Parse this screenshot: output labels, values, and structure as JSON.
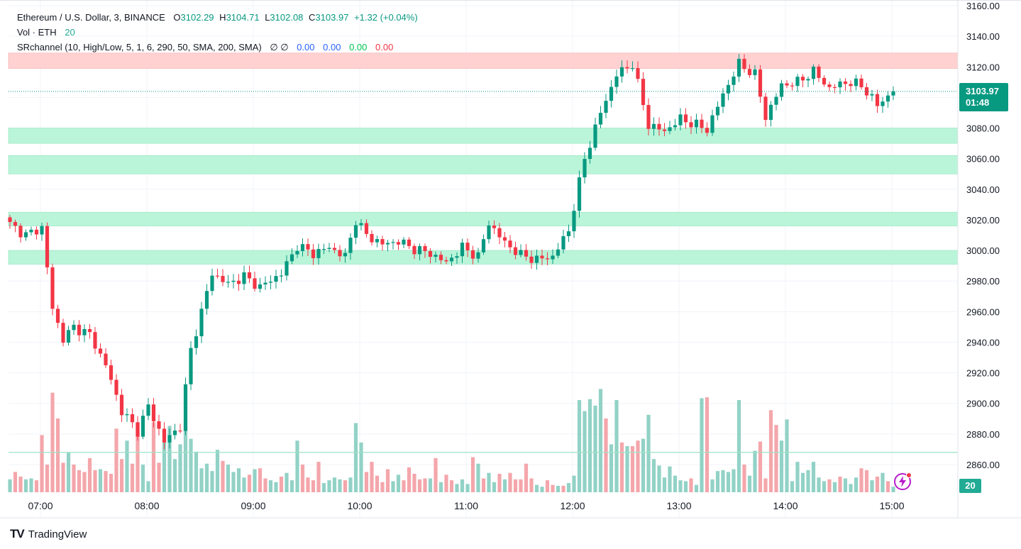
{
  "legend": {
    "symbol": "Ethereum / U.S. Dollar, 3, BINANCE",
    "o_label": "O",
    "o_value": "3102.29",
    "h_label": "H",
    "h_value": "3104.71",
    "l_label": "L",
    "l_value": "3102.08",
    "c_label": "C",
    "c_value": "3103.97",
    "change": "+1.32 (+0.04%)",
    "vol_label": "Vol · ETH",
    "vol_value": "20",
    "sr_label": "SRchannel (10, High/Low, 5, 1, 6, 290, 50, SMA, 200, SMA)",
    "sr_icons": "∅ ∅",
    "sr_v1": "0.00",
    "sr_v2": "0.00",
    "sr_v3": "0.00",
    "sr_v4": "0.00"
  },
  "price_badge": {
    "price": "3103.97",
    "countdown": "01:48"
  },
  "volume_badge": "20",
  "brand": {
    "logo": "TV",
    "name": "TradingView"
  },
  "colors": {
    "up": "#089981",
    "down": "#f23645",
    "up_volume": "#92d2c6",
    "down_volume": "#f4a6ab",
    "support_zone": "#baf5d9",
    "resistance_zone": "#ffd1d1",
    "grid": "#f0f3fa"
  },
  "chart_data": {
    "type": "candlestick",
    "symbol": "ETHUSD",
    "interval_minutes": 3,
    "y_axis": {
      "min": 2860,
      "max": 3160,
      "ticks": [
        2860,
        2880,
        2900,
        2920,
        2940,
        2960,
        2980,
        3000,
        3020,
        3040,
        3060,
        3080,
        3100,
        3120,
        3140,
        3160
      ],
      "side": "right"
    },
    "x_axis": {
      "labels": [
        "07:00",
        "08:00",
        "09:00",
        "10:00",
        "11:00",
        "12:00",
        "13:00",
        "14:00",
        "15:00"
      ]
    },
    "last_price": 3103.97,
    "sr_zones": [
      {
        "kind": "resistance",
        "low": 3119,
        "high": 3129
      },
      {
        "kind": "support",
        "low": 3070,
        "high": 3080
      },
      {
        "kind": "support",
        "low": 3050,
        "high": 3062
      },
      {
        "kind": "support",
        "low": 3016,
        "high": 3025
      },
      {
        "kind": "support",
        "low": 2991,
        "high": 3000
      }
    ],
    "volume_ma_level": 2868,
    "anchors": [
      [
        0,
        3017
      ],
      [
        3,
        3010
      ],
      [
        6,
        3015
      ],
      [
        8,
        2962
      ],
      [
        10,
        2942
      ],
      [
        12,
        2950
      ],
      [
        15,
        2945
      ],
      [
        18,
        2925
      ],
      [
        21,
        2895
      ],
      [
        24,
        2882
      ],
      [
        26,
        2898
      ],
      [
        29,
        2875
      ],
      [
        32,
        2885
      ],
      [
        34,
        2935
      ],
      [
        38,
        2985
      ],
      [
        41,
        2978
      ],
      [
        44,
        2983
      ],
      [
        47,
        2976
      ],
      [
        51,
        2985
      ],
      [
        54,
        3003
      ],
      [
        57,
        2998
      ],
      [
        60,
        3002
      ],
      [
        63,
        2996
      ],
      [
        65,
        3020
      ],
      [
        67,
        3010
      ],
      [
        70,
        3004
      ],
      [
        73,
        3006
      ],
      [
        76,
        3001
      ],
      [
        79,
        2998
      ],
      [
        82,
        2992
      ],
      [
        85,
        3002
      ],
      [
        88,
        2996
      ],
      [
        90,
        3018
      ],
      [
        93,
        3005
      ],
      [
        96,
        2997
      ],
      [
        99,
        2994
      ],
      [
        102,
        2996
      ],
      [
        105,
        3013
      ],
      [
        108,
        3060
      ],
      [
        111,
        3090
      ],
      [
        114,
        3115
      ],
      [
        117,
        3122
      ],
      [
        120,
        3082
      ],
      [
        123,
        3078
      ],
      [
        126,
        3086
      ],
      [
        129,
        3082
      ],
      [
        131,
        3079
      ],
      [
        134,
        3102
      ],
      [
        137,
        3122
      ],
      [
        140,
        3115
      ],
      [
        142,
        3087
      ],
      [
        145,
        3108
      ],
      [
        148,
        3110
      ],
      [
        151,
        3117
      ],
      [
        154,
        3106
      ],
      [
        157,
        3110
      ],
      [
        160,
        3108
      ],
      [
        163,
        3095
      ],
      [
        166,
        3103.97
      ]
    ],
    "volume": [
      [
        0,
        14,
        1
      ],
      [
        1,
        22,
        0
      ],
      [
        2,
        17,
        0
      ],
      [
        3,
        14,
        1
      ],
      [
        4,
        15,
        1
      ],
      [
        5,
        13,
        0
      ],
      [
        6,
        62,
        0
      ],
      [
        7,
        30,
        0
      ],
      [
        8,
        108,
        0
      ],
      [
        9,
        80,
        0
      ],
      [
        10,
        32,
        0
      ],
      [
        11,
        43,
        1
      ],
      [
        12,
        30,
        0
      ],
      [
        13,
        24,
        0
      ],
      [
        14,
        22,
        0
      ],
      [
        15,
        37,
        0
      ],
      [
        16,
        24,
        0
      ],
      [
        17,
        25,
        1
      ],
      [
        18,
        23,
        0
      ],
      [
        19,
        20,
        0
      ],
      [
        20,
        69,
        0
      ],
      [
        21,
        36,
        0
      ],
      [
        22,
        56,
        1
      ],
      [
        23,
        31,
        0
      ],
      [
        24,
        75,
        0
      ],
      [
        25,
        30,
        1
      ],
      [
        26,
        12,
        1
      ],
      [
        27,
        76,
        0
      ],
      [
        28,
        32,
        0
      ],
      [
        29,
        65,
        1
      ],
      [
        30,
        72,
        1
      ],
      [
        31,
        36,
        1
      ],
      [
        32,
        52,
        1
      ],
      [
        33,
        72,
        1
      ],
      [
        34,
        58,
        1
      ],
      [
        35,
        44,
        1
      ],
      [
        36,
        26,
        1
      ],
      [
        37,
        31,
        1
      ],
      [
        38,
        23,
        1
      ],
      [
        39,
        46,
        1
      ],
      [
        40,
        34,
        0
      ],
      [
        41,
        30,
        1
      ],
      [
        42,
        22,
        1
      ],
      [
        43,
        26,
        1
      ],
      [
        44,
        16,
        1
      ],
      [
        45,
        19,
        0
      ],
      [
        46,
        25,
        1
      ],
      [
        47,
        26,
        0
      ],
      [
        48,
        15,
        0
      ],
      [
        49,
        13,
        1
      ],
      [
        50,
        11,
        1
      ],
      [
        51,
        17,
        0
      ],
      [
        52,
        21,
        1
      ],
      [
        53,
        13,
        1
      ],
      [
        54,
        56,
        1
      ],
      [
        55,
        30,
        0
      ],
      [
        56,
        16,
        0
      ],
      [
        57,
        13,
        0
      ],
      [
        58,
        33,
        0
      ],
      [
        59,
        10,
        1
      ],
      [
        60,
        13,
        1
      ],
      [
        61,
        16,
        1
      ],
      [
        62,
        14,
        1
      ],
      [
        63,
        13,
        0
      ],
      [
        64,
        16,
        1
      ],
      [
        65,
        75,
        1
      ],
      [
        66,
        54,
        1
      ],
      [
        67,
        22,
        0
      ],
      [
        68,
        33,
        0
      ],
      [
        69,
        18,
        0
      ],
      [
        70,
        11,
        0
      ],
      [
        71,
        25,
        0
      ],
      [
        72,
        12,
        1
      ],
      [
        73,
        19,
        1
      ],
      [
        74,
        13,
        0
      ],
      [
        75,
        27,
        0
      ],
      [
        76,
        20,
        0
      ],
      [
        77,
        14,
        0
      ],
      [
        78,
        15,
        0
      ],
      [
        79,
        15,
        1
      ],
      [
        80,
        37,
        0
      ],
      [
        81,
        11,
        1
      ],
      [
        82,
        19,
        0
      ],
      [
        83,
        13,
        0
      ],
      [
        84,
        9,
        1
      ],
      [
        85,
        14,
        1
      ],
      [
        86,
        9,
        1
      ],
      [
        87,
        38,
        0
      ],
      [
        88,
        31,
        1
      ],
      [
        89,
        15,
        0
      ],
      [
        90,
        21,
        1
      ],
      [
        91,
        11,
        1
      ],
      [
        92,
        20,
        0
      ],
      [
        93,
        14,
        1
      ],
      [
        94,
        21,
        0
      ],
      [
        95,
        14,
        0
      ],
      [
        96,
        14,
        0
      ],
      [
        97,
        31,
        0
      ],
      [
        98,
        15,
        0
      ],
      [
        99,
        8,
        1
      ],
      [
        100,
        6,
        1
      ],
      [
        101,
        13,
        0
      ],
      [
        102,
        8,
        0
      ],
      [
        103,
        7,
        1
      ],
      [
        104,
        7,
        0
      ],
      [
        105,
        10,
        1
      ],
      [
        106,
        18,
        1
      ],
      [
        107,
        100,
        1
      ],
      [
        108,
        88,
        1
      ],
      [
        109,
        101,
        1
      ],
      [
        110,
        94,
        1
      ],
      [
        111,
        112,
        1
      ],
      [
        112,
        80,
        0
      ],
      [
        113,
        52,
        1
      ],
      [
        114,
        100,
        1
      ],
      [
        115,
        54,
        0
      ],
      [
        116,
        50,
        1
      ],
      [
        117,
        50,
        0
      ],
      [
        118,
        56,
        0
      ],
      [
        119,
        58,
        1
      ],
      [
        120,
        84,
        1
      ],
      [
        121,
        36,
        1
      ],
      [
        122,
        29,
        1
      ],
      [
        123,
        16,
        1
      ],
      [
        124,
        28,
        1
      ],
      [
        125,
        18,
        1
      ],
      [
        126,
        13,
        1
      ],
      [
        127,
        12,
        1
      ],
      [
        128,
        15,
        0
      ],
      [
        129,
        8,
        1
      ],
      [
        130,
        102,
        1
      ],
      [
        131,
        103,
        0
      ],
      [
        132,
        14,
        1
      ],
      [
        133,
        23,
        1
      ],
      [
        134,
        24,
        1
      ],
      [
        135,
        22,
        1
      ],
      [
        136,
        25,
        1
      ],
      [
        137,
        100,
        1
      ],
      [
        138,
        30,
        0
      ],
      [
        139,
        18,
        1
      ],
      [
        140,
        45,
        1
      ],
      [
        141,
        55,
        0
      ],
      [
        142,
        15,
        0
      ],
      [
        143,
        89,
        0
      ],
      [
        144,
        73,
        0
      ],
      [
        145,
        56,
        1
      ],
      [
        146,
        79,
        1
      ],
      [
        147,
        12,
        1
      ],
      [
        148,
        33,
        1
      ],
      [
        149,
        21,
        1
      ],
      [
        150,
        24,
        1
      ],
      [
        151,
        33,
        1
      ],
      [
        152,
        16,
        1
      ],
      [
        153,
        12,
        1
      ],
      [
        154,
        14,
        0
      ],
      [
        155,
        11,
        1
      ],
      [
        156,
        17,
        0
      ],
      [
        157,
        15,
        1
      ],
      [
        158,
        9,
        1
      ],
      [
        159,
        16,
        1
      ],
      [
        160,
        26,
        0
      ],
      [
        161,
        24,
        0
      ],
      [
        162,
        13,
        1
      ],
      [
        163,
        17,
        0
      ],
      [
        164,
        21,
        1
      ],
      [
        165,
        12,
        0
      ],
      [
        166,
        6,
        1
      ]
    ]
  }
}
